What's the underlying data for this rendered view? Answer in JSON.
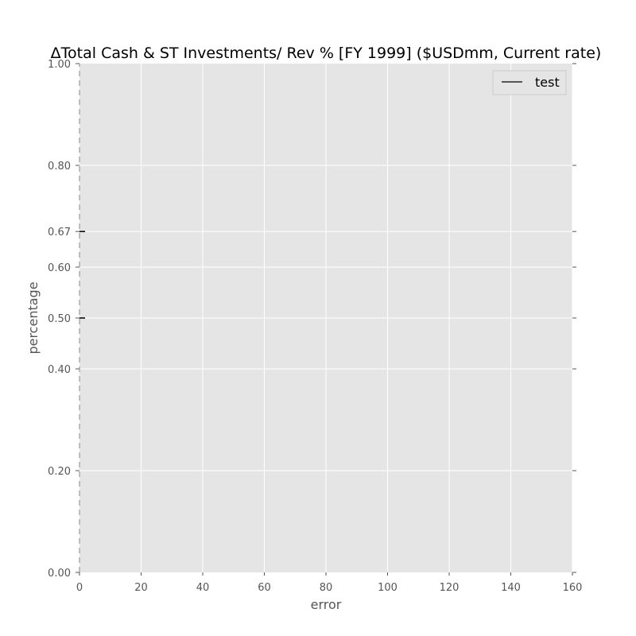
{
  "chart_data": {
    "type": "line",
    "title": "ΔTotal Cash & ST Investments/ Rev % [FY 1999] ($USDmm, Current rate)",
    "xlabel": "error",
    "ylabel": "percentage",
    "xlim": [
      0,
      160
    ],
    "ylim": [
      0,
      1
    ],
    "x_ticks": [
      0,
      20,
      40,
      60,
      80,
      100,
      120,
      140,
      160
    ],
    "x_tick_labels": [
      "0",
      "20",
      "40",
      "60",
      "80",
      "100",
      "120",
      "140",
      "160"
    ],
    "y_ticks": [
      0.0,
      0.2,
      0.4,
      0.5,
      0.6,
      0.67,
      0.8,
      1.0
    ],
    "y_tick_labels": [
      "0.00",
      "0.20",
      "0.40",
      "0.50",
      "0.60",
      "0.67",
      "0.80",
      "1.00"
    ],
    "grid": true,
    "legend_position": "top-right",
    "series": [
      {
        "name": "test",
        "color": "#000000",
        "x": [
          0,
          0,
          0,
          0
        ],
        "y": [
          0.0,
          0.5,
          0.67,
          1.0
        ]
      }
    ],
    "colors": {
      "plot_background": "#e5e5e5",
      "grid": "#ffffff",
      "tick_label": "#555555",
      "axis_label": "#555555"
    }
  }
}
